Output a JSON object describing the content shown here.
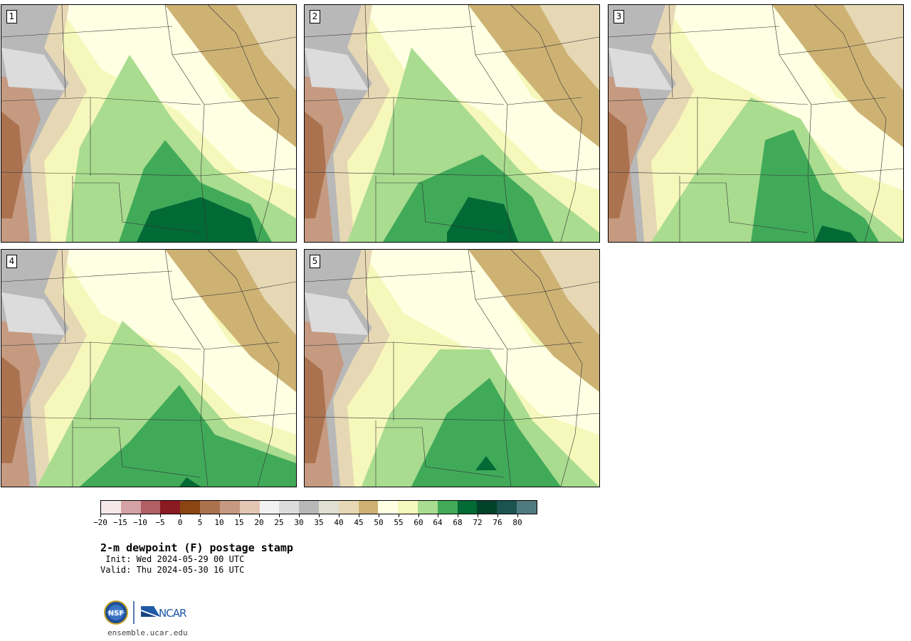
{
  "figure": {
    "title": "2-m dewpoint (F) postage stamp",
    "init": " Init: Wed 2024-05-29 00 UTC",
    "valid": "Valid: Thu 2024-05-30 16 UTC",
    "website": "ensemble.ucar.edu",
    "logos": {
      "left": "NSF",
      "right": "NCAR"
    }
  },
  "panels": [
    {
      "label": "1",
      "variant": "dark-south"
    },
    {
      "label": "2",
      "variant": "dark-center"
    },
    {
      "label": "3",
      "variant": "east-green"
    },
    {
      "label": "4",
      "variant": "moderate"
    },
    {
      "label": "5",
      "variant": "moderate-east"
    }
  ],
  "colorbar": {
    "colors": [
      "#f4e9e8",
      "#d4a1a4",
      "#b15f64",
      "#8c1a22",
      "#8a4512",
      "#ab7250",
      "#c59a81",
      "#e3c6b4",
      "#f2f2f2",
      "#dcdcdc",
      "#b8b8b8",
      "#dfdfd2",
      "#e6d8b4",
      "#cdb274",
      "#ffffe3",
      "#f6f8bb",
      "#a9dc8f",
      "#41aa59",
      "#026a35",
      "#00422a",
      "#1b5351",
      "#4f7b80"
    ],
    "tick_labels": [
      "−20",
      "−15",
      "−10",
      "−5",
      "0",
      "5",
      "10",
      "15",
      "20",
      "25",
      "30",
      "35",
      "40",
      "45",
      "50",
      "55",
      "60",
      "64",
      "68",
      "72",
      "76",
      "80"
    ]
  }
}
